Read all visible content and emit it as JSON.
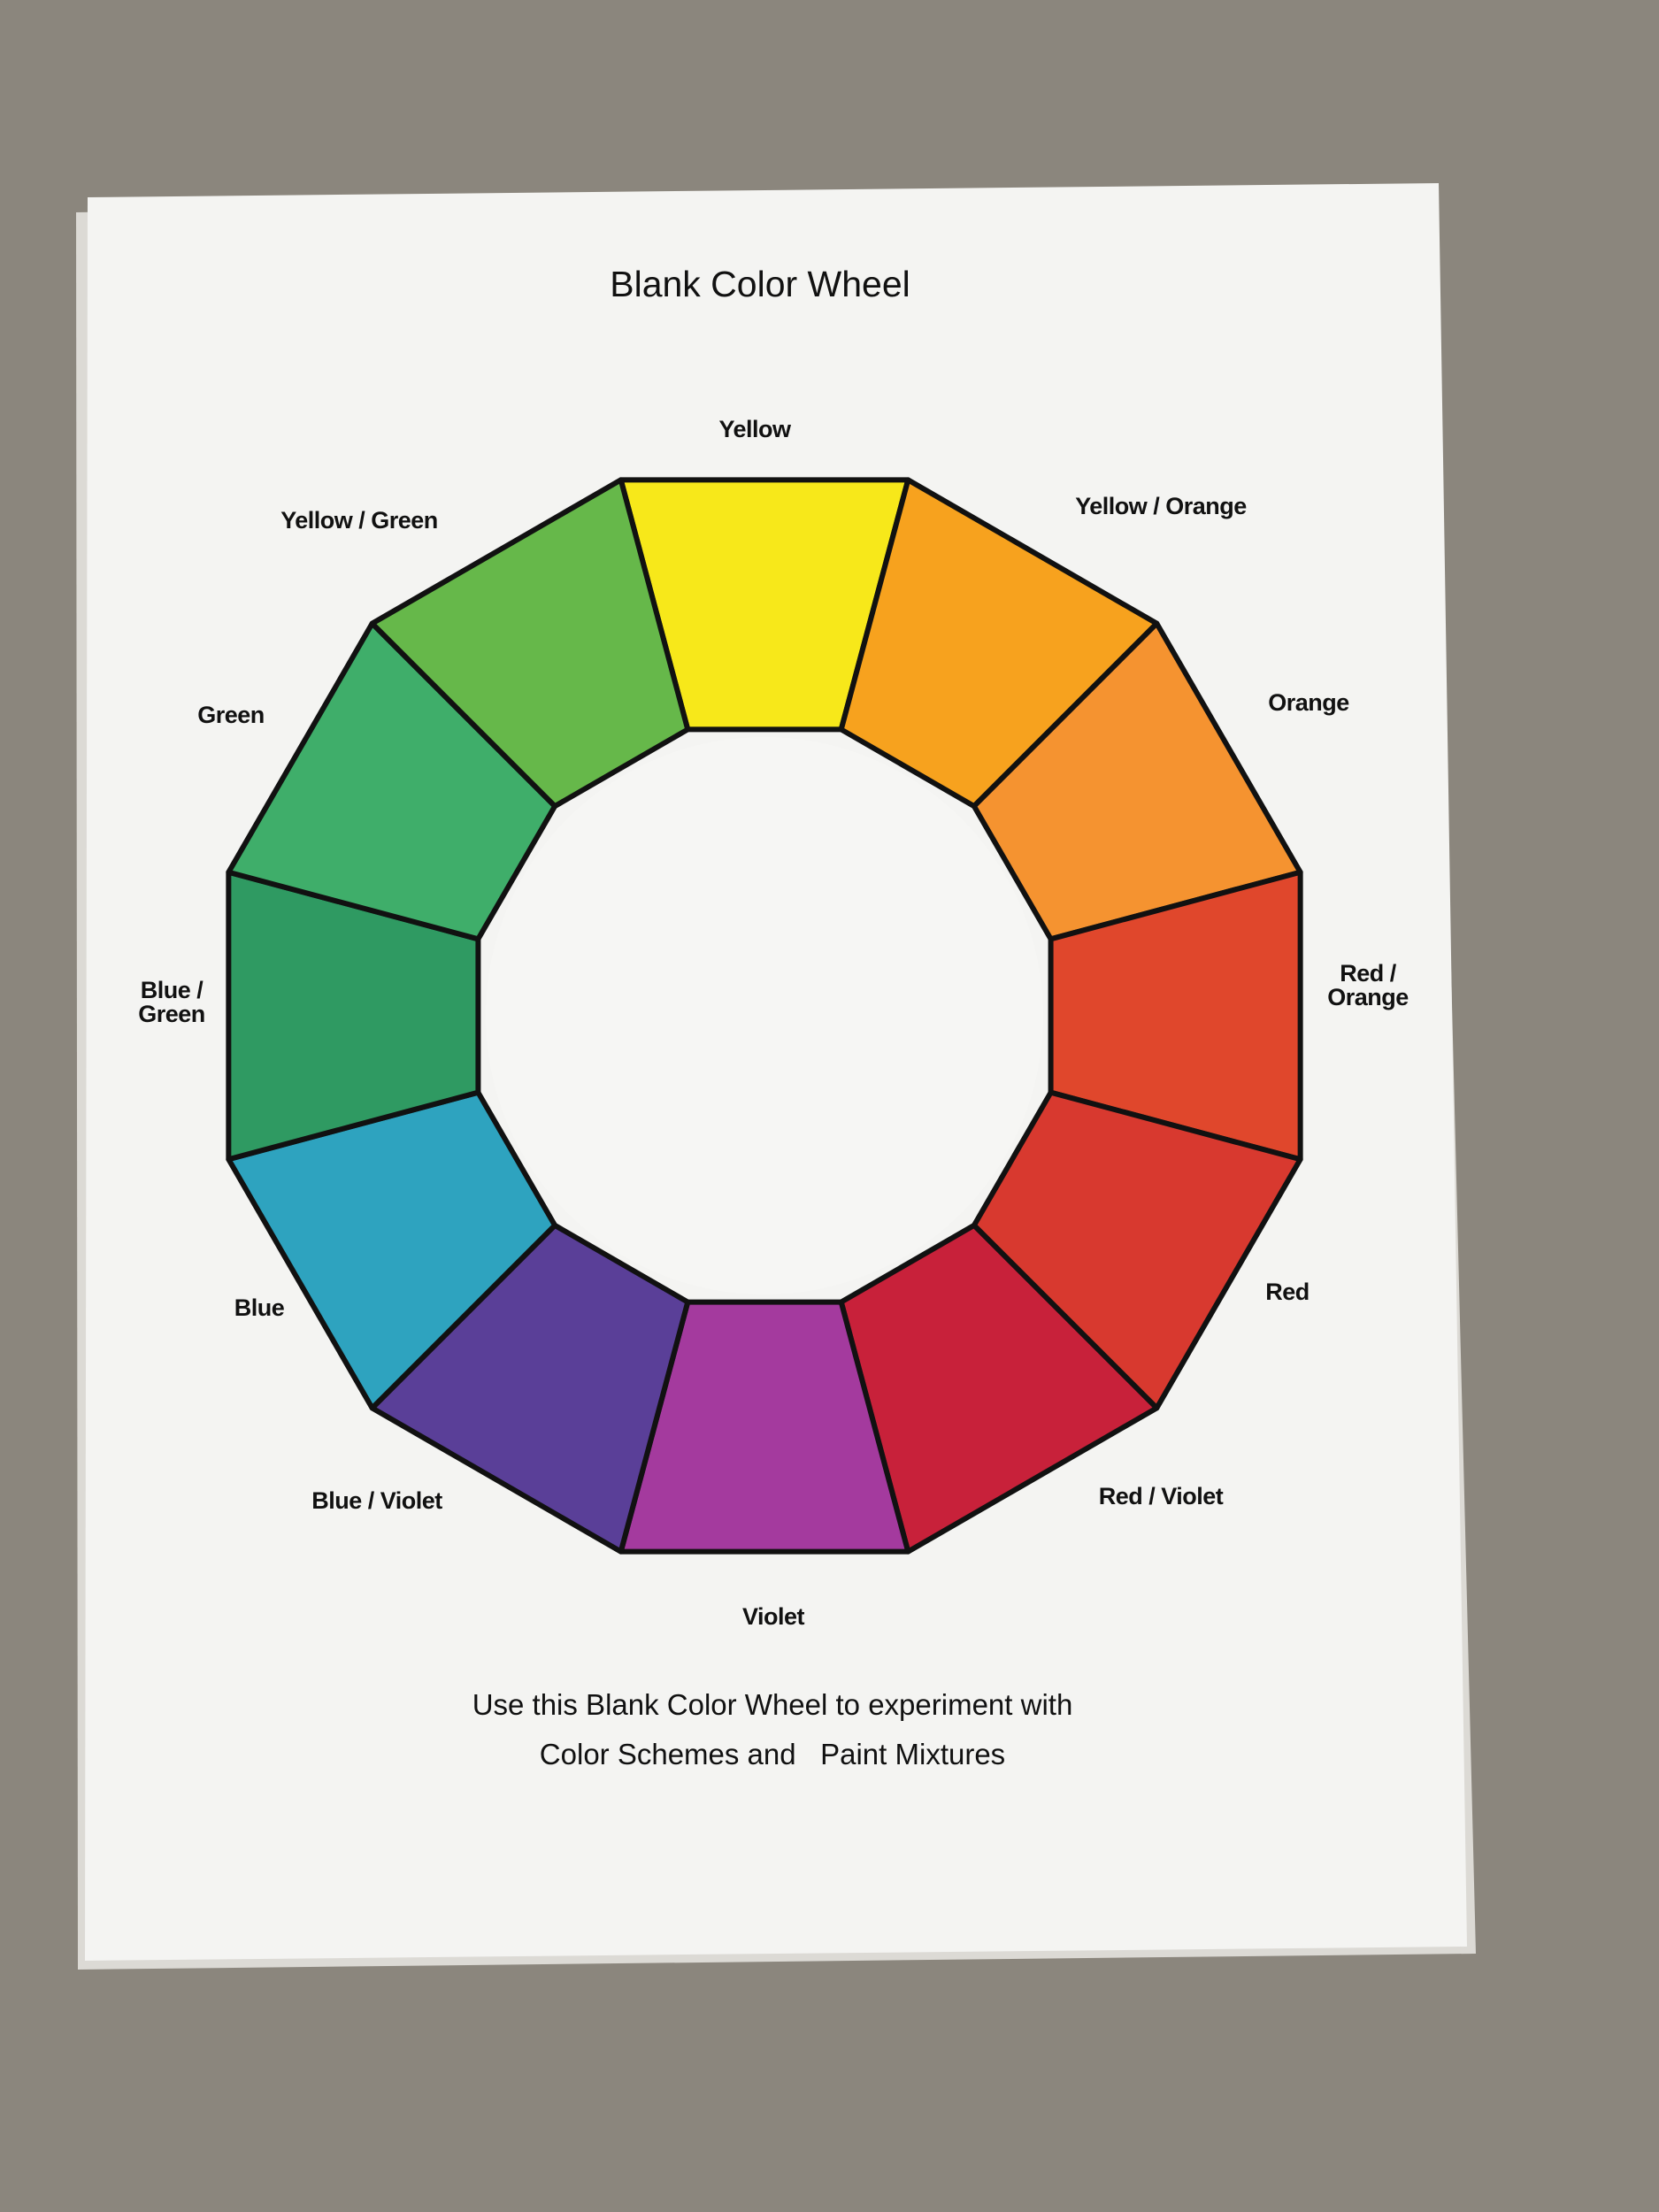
{
  "title": "Blank Color Wheel",
  "segments": [
    {
      "label": [
        "Yellow"
      ],
      "color": "#f7e81a"
    },
    {
      "label": [
        "Yellow / Orange"
      ],
      "color": "#f7a21e"
    },
    {
      "label": [
        "Orange"
      ],
      "color": "#f59330"
    },
    {
      "label": [
        "Red /",
        "Orange"
      ],
      "color": "#e0472c"
    },
    {
      "label": [
        "Red"
      ],
      "color": "#d8392f"
    },
    {
      "label": [
        "Red / Violet"
      ],
      "color": "#c8213a"
    },
    {
      "label": [
        "Violet"
      ],
      "color": "#a43a9e"
    },
    {
      "label": [
        "Blue / Violet"
      ],
      "color": "#5a3f98"
    },
    {
      "label": [
        "Blue"
      ],
      "color": "#2ea3bf"
    },
    {
      "label": [
        "Blue /",
        "Green"
      ],
      "color": "#2f9a62"
    },
    {
      "label": [
        "Green"
      ],
      "color": "#3fae6a"
    },
    {
      "label": [
        "Yellow / Green"
      ],
      "color": "#66b84a"
    }
  ],
  "footer": [
    "Use this Blank Color Wheel to experiment with",
    "Color Schemes and   Paint Mixtures"
  ]
}
